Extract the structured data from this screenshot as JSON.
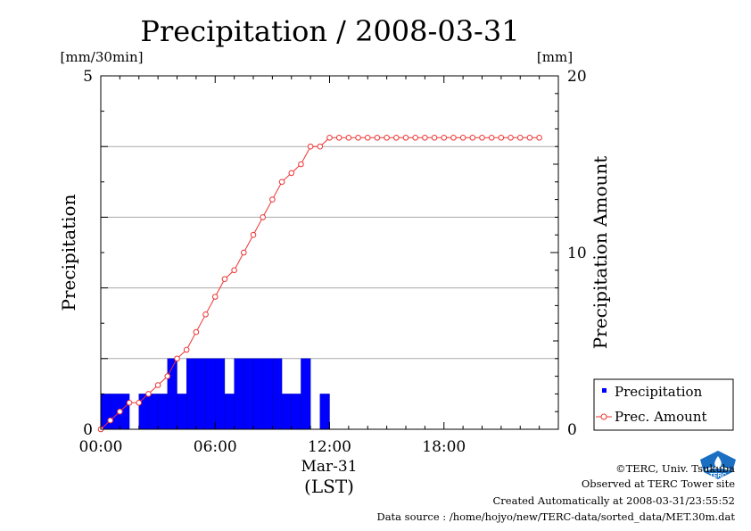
{
  "chart_data": {
    "type": "bar",
    "title": "Precipitation / 2008-03-31",
    "left_axis": {
      "label": "Precipitation",
      "unit": "[mm/30min]",
      "range": [
        0,
        5
      ],
      "ticks": [
        "0",
        "5"
      ]
    },
    "right_axis": {
      "label": "Precipitation Amount",
      "unit": "[mm]",
      "range": [
        0,
        20
      ],
      "ticks": [
        "0",
        "10",
        "20"
      ]
    },
    "x_axis": {
      "range_hours": [
        0,
        24
      ],
      "ticks": [
        {
          "hour": 0,
          "label": "00:00"
        },
        {
          "hour": 6,
          "label": "06:00"
        },
        {
          "hour": 12,
          "label": "12:00"
        },
        {
          "hour": 18,
          "label": "18:00"
        }
      ],
      "date_label": "Mar-31",
      "zone_label": "(LST)"
    },
    "grid": true,
    "gridlines_left": [
      1,
      2,
      3,
      4
    ],
    "legend": {
      "position": "bottom-right-outside",
      "entries": [
        "Precipitation",
        "Prec. Amount"
      ]
    },
    "colors": {
      "bar": "#0000ff",
      "line": "#ee3333",
      "grid": "#aaaaaa"
    },
    "series": [
      {
        "name": "Precipitation",
        "type": "bar",
        "axis": "left",
        "x_hours": [
          0,
          0.5,
          1,
          1.5,
          2,
          2.5,
          3,
          3.5,
          4,
          4.5,
          5,
          5.5,
          6,
          6.5,
          7,
          7.5,
          8,
          8.5,
          9,
          9.5,
          10,
          10.5,
          11,
          11.5
        ],
        "values": [
          0.5,
          0.5,
          0.5,
          0,
          0.5,
          0.5,
          0.5,
          1.0,
          0.5,
          1.0,
          1.0,
          1.0,
          1.0,
          0.5,
          1.0,
          1.0,
          1.0,
          1.0,
          1.0,
          0.5,
          0.5,
          1.0,
          0,
          0.5
        ]
      },
      {
        "name": "Prec. Amount",
        "type": "line",
        "axis": "right",
        "x_hours": [
          0,
          0.5,
          1,
          1.5,
          2,
          2.5,
          3,
          3.5,
          4,
          4.5,
          5,
          5.5,
          6,
          6.5,
          7,
          7.5,
          8,
          8.5,
          9,
          9.5,
          10,
          10.5,
          11,
          11.5,
          12,
          12.5,
          13,
          13.5,
          14,
          14.5,
          15,
          15.5,
          16,
          16.5,
          17,
          17.5,
          18,
          18.5,
          19,
          19.5,
          20,
          20.5,
          21,
          21.5,
          22,
          22.5,
          23
        ],
        "values": [
          0,
          0.5,
          1.0,
          1.5,
          1.5,
          2.0,
          2.5,
          3.0,
          4.0,
          4.5,
          5.5,
          6.5,
          7.5,
          8.5,
          9.0,
          10.0,
          11.0,
          12.0,
          13.0,
          14.0,
          14.5,
          15.0,
          16.0,
          16.0,
          16.5,
          16.5,
          16.5,
          16.5,
          16.5,
          16.5,
          16.5,
          16.5,
          16.5,
          16.5,
          16.5,
          16.5,
          16.5,
          16.5,
          16.5,
          16.5,
          16.5,
          16.5,
          16.5,
          16.5,
          16.5,
          16.5,
          16.5
        ]
      }
    ]
  },
  "footer": {
    "copyright": "©TERC, Univ. Tsukuba",
    "site": "Observed at TERC Tower site",
    "created": "Created Automatically at 2008-03-31/23:55:52",
    "source": "Data source : /home/hojyo/new/TERC-data/sorted_data/MET.30m.dat"
  },
  "logo": {
    "icon": "terc-logo-icon",
    "text": "TERC"
  }
}
